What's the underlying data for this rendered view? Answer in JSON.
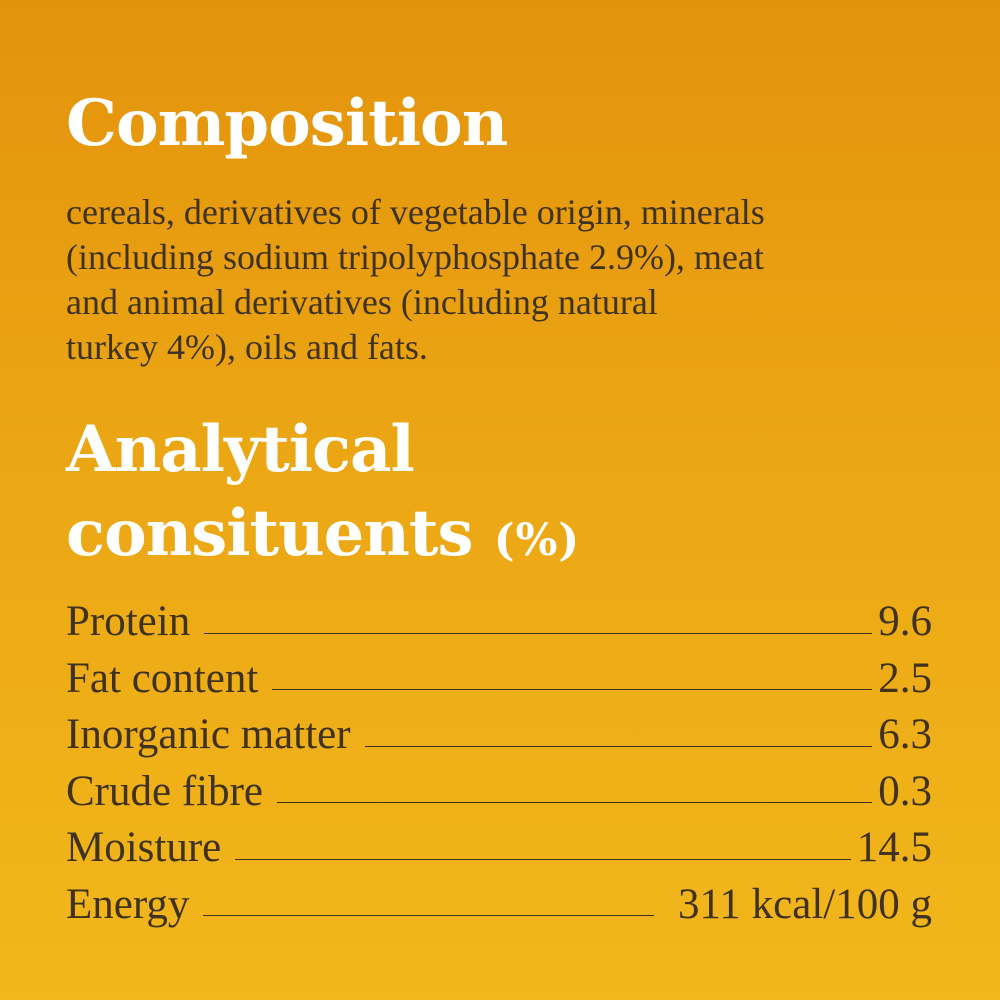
{
  "composition": {
    "title": "Composition",
    "lines": [
      "cereals, derivatives of vegetable origin, minerals",
      "(including sodium tripolyphosphate 2.9%), meat",
      "and animal derivatives (including natural",
      "turkey 4%), oils and fats."
    ]
  },
  "analytical": {
    "title_lines": [
      "Analytical",
      "consituents"
    ],
    "unit": "(%)",
    "rows": [
      {
        "label": "Protein",
        "value": "9.6"
      },
      {
        "label": "Fat content",
        "value": "2.5"
      },
      {
        "label": "Inorganic matter",
        "value": "6.3"
      },
      {
        "label": "Crude fibre",
        "value": "0.3"
      },
      {
        "label": "Moisture",
        "value": "14.5"
      },
      {
        "label": "Energy",
        "value": "311 kcal/100 g"
      }
    ]
  }
}
